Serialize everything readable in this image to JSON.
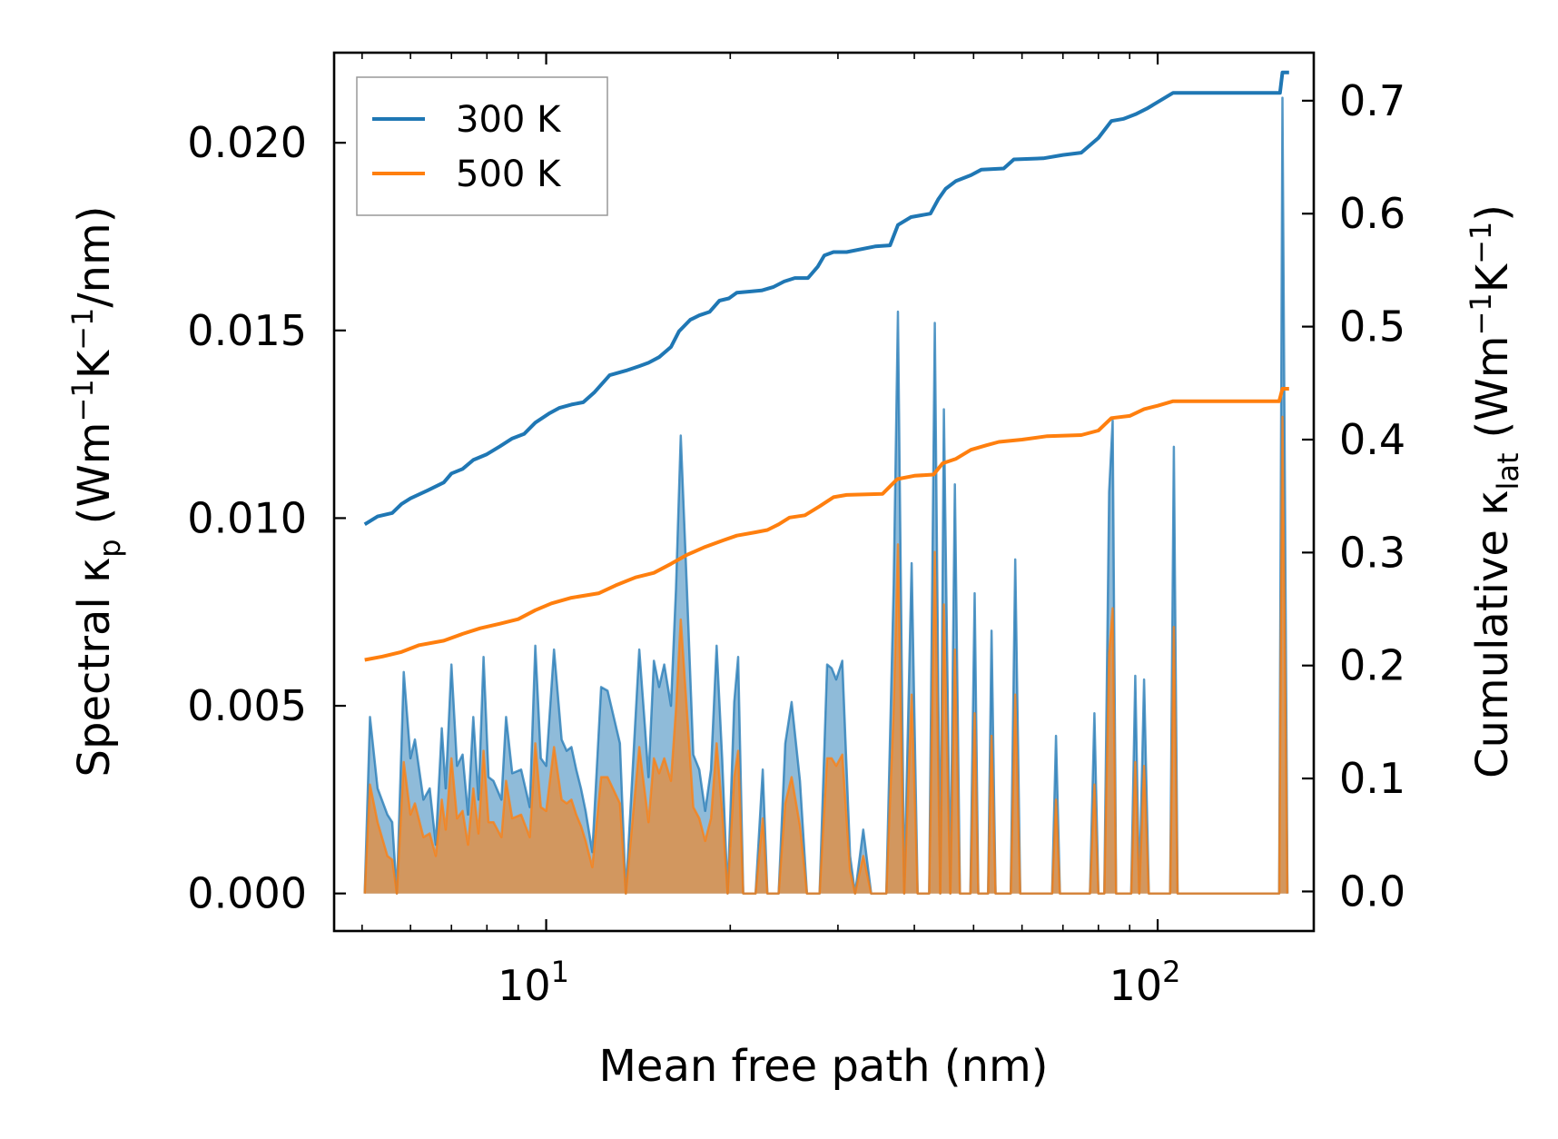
{
  "chart_data": {
    "type": "line",
    "xscale": "log",
    "xlabel": "Mean free path (nm)",
    "ylabel_left": {
      "main": "Spectral κ",
      "sub": "p",
      "unit": "(Wm",
      "sup1": "−1",
      "k": "K",
      "sup2": "−1",
      "tail": "/nm)"
    },
    "ylabel_right": {
      "main": "Cumulative κ",
      "sub": "lat",
      "unit": "(Wm",
      "sup1": "−1",
      "k": "K",
      "sup2": "−1",
      "tail": ")"
    },
    "xlim": [
      4.5,
      180
    ],
    "ylim_left": [
      -0.001,
      0.0224
    ],
    "ylim_right": [
      -0.035,
      0.7425
    ],
    "x_ticks": [
      {
        "value": 10,
        "base": "10",
        "exp": "1"
      },
      {
        "value": 100,
        "base": "10",
        "exp": "2"
      }
    ],
    "y_ticks_left": [
      {
        "value": 0.0,
        "label": "0.000"
      },
      {
        "value": 0.005,
        "label": "0.005"
      },
      {
        "value": 0.01,
        "label": "0.010"
      },
      {
        "value": 0.015,
        "label": "0.015"
      },
      {
        "value": 0.02,
        "label": "0.020"
      }
    ],
    "y_ticks_right": [
      {
        "value": 0.0,
        "label": "0.0"
      },
      {
        "value": 0.1,
        "label": "0.1"
      },
      {
        "value": 0.2,
        "label": "0.2"
      },
      {
        "value": 0.3,
        "label": "0.3"
      },
      {
        "value": 0.4,
        "label": "0.4"
      },
      {
        "value": 0.5,
        "label": "0.5"
      },
      {
        "value": 0.6,
        "label": "0.6"
      },
      {
        "value": 0.7,
        "label": "0.7"
      }
    ],
    "legend": {
      "position": "upper-left",
      "entries": [
        {
          "label": "300 K",
          "color": "#1f77b4"
        },
        {
          "label": "500 K",
          "color": "#ff7f0e"
        }
      ]
    },
    "spectral_300K": [
      [
        5.05,
        0
      ],
      [
        5.15,
        0.0047
      ],
      [
        5.3,
        0.0028
      ],
      [
        5.5,
        0.0021
      ],
      [
        5.6,
        0.0019
      ],
      [
        5.7,
        0
      ],
      [
        5.85,
        0.0059
      ],
      [
        6.0,
        0.0036
      ],
      [
        6.1,
        0.0041
      ],
      [
        6.3,
        0.0025
      ],
      [
        6.45,
        0.0028
      ],
      [
        6.6,
        0.0013
      ],
      [
        6.75,
        0.0044
      ],
      [
        6.85,
        0.0028
      ],
      [
        7.0,
        0.0061
      ],
      [
        7.15,
        0.0034
      ],
      [
        7.3,
        0.0037
      ],
      [
        7.45,
        0.0021
      ],
      [
        7.6,
        0.0047
      ],
      [
        7.75,
        0.0025
      ],
      [
        7.9,
        0.0063
      ],
      [
        8.05,
        0.0031
      ],
      [
        8.2,
        0.003
      ],
      [
        8.45,
        0.0025
      ],
      [
        8.6,
        0.0047
      ],
      [
        8.8,
        0.0032
      ],
      [
        9.1,
        0.0033
      ],
      [
        9.4,
        0.0023
      ],
      [
        9.6,
        0.0066
      ],
      [
        9.8,
        0.0036
      ],
      [
        10.0,
        0.0034
      ],
      [
        10.3,
        0.0065
      ],
      [
        10.6,
        0.0041
      ],
      [
        10.8,
        0.0038
      ],
      [
        11.0,
        0.0039
      ],
      [
        11.2,
        0.0033
      ],
      [
        11.4,
        0.0028
      ],
      [
        11.6,
        0.0022
      ],
      [
        11.9,
        0.0011
      ],
      [
        12.3,
        0.0055
      ],
      [
        12.6,
        0.0054
      ],
      [
        13.2,
        0.004
      ],
      [
        13.5,
        0
      ],
      [
        14.2,
        0.0065
      ],
      [
        14.5,
        0.0045
      ],
      [
        14.7,
        0.0031
      ],
      [
        15.0,
        0.0062
      ],
      [
        15.3,
        0.0055
      ],
      [
        15.6,
        0.0061
      ],
      [
        16.0,
        0.005
      ],
      [
        16.3,
        0.0081
      ],
      [
        16.6,
        0.0122
      ],
      [
        17.0,
        0.008
      ],
      [
        17.4,
        0.0037
      ],
      [
        17.8,
        0.0033
      ],
      [
        18.2,
        0.0022
      ],
      [
        18.6,
        0.0033
      ],
      [
        19.0,
        0.0066
      ],
      [
        19.4,
        0.0036
      ],
      [
        19.8,
        0
      ],
      [
        20.3,
        0.0051
      ],
      [
        20.6,
        0.0063
      ],
      [
        21.0,
        0
      ],
      [
        22.0,
        0
      ],
      [
        22.6,
        0.0033
      ],
      [
        23.0,
        0
      ],
      [
        24.0,
        0
      ],
      [
        24.6,
        0.004
      ],
      [
        25.2,
        0.0051
      ],
      [
        26.0,
        0.003
      ],
      [
        26.7,
        0
      ],
      [
        28.0,
        0
      ],
      [
        28.8,
        0.0061
      ],
      [
        29.3,
        0.006
      ],
      [
        29.8,
        0.0057
      ],
      [
        30.5,
        0.0062
      ],
      [
        31.4,
        0.001
      ],
      [
        32.0,
        0
      ],
      [
        33.0,
        0.0017
      ],
      [
        34.0,
        0
      ],
      [
        36.0,
        0
      ],
      [
        37.0,
        0.0082
      ],
      [
        37.6,
        0.0155
      ],
      [
        38.5,
        0
      ],
      [
        39.6,
        0.0088
      ],
      [
        40.5,
        0
      ],
      [
        42.3,
        0
      ],
      [
        43.2,
        0.0152
      ],
      [
        44.1,
        0
      ],
      [
        44.7,
        0.0129
      ],
      [
        45.8,
        0
      ],
      [
        46.6,
        0.0109
      ],
      [
        47.5,
        0
      ],
      [
        49.4,
        0
      ],
      [
        50.2,
        0.008
      ],
      [
        50.9,
        0
      ],
      [
        52.8,
        0
      ],
      [
        53.5,
        0.007
      ],
      [
        54.3,
        0
      ],
      [
        57.5,
        0
      ],
      [
        58.5,
        0.0089
      ],
      [
        59.6,
        0
      ],
      [
        67.2,
        0
      ],
      [
        68.2,
        0.0042
      ],
      [
        69.2,
        0
      ],
      [
        77.5,
        0
      ],
      [
        78.8,
        0.0048
      ],
      [
        80.0,
        0
      ],
      [
        81.8,
        0
      ],
      [
        83.3,
        0.0107
      ],
      [
        84.4,
        0.0126
      ],
      [
        85.5,
        0
      ],
      [
        90.5,
        0
      ],
      [
        91.9,
        0.0058
      ],
      [
        93.3,
        0
      ],
      [
        95.0,
        0.0057
      ],
      [
        96.7,
        0
      ],
      [
        104.8,
        0
      ],
      [
        106.3,
        0.0119
      ],
      [
        107.8,
        0
      ],
      [
        158.0,
        0
      ],
      [
        160.0,
        0.0212
      ],
      [
        163.0,
        0
      ]
    ],
    "spectral_500K": [
      [
        5.05,
        0
      ],
      [
        5.15,
        0.0029
      ],
      [
        5.3,
        0.0019
      ],
      [
        5.5,
        0.001
      ],
      [
        5.6,
        0.0009
      ],
      [
        5.7,
        0
      ],
      [
        5.85,
        0.0035
      ],
      [
        6.0,
        0.0021
      ],
      [
        6.1,
        0.0024
      ],
      [
        6.3,
        0.0015
      ],
      [
        6.45,
        0.0016
      ],
      [
        6.6,
        0.001
      ],
      [
        6.75,
        0.0025
      ],
      [
        6.85,
        0.0017
      ],
      [
        7.0,
        0.0036
      ],
      [
        7.15,
        0.002
      ],
      [
        7.3,
        0.0022
      ],
      [
        7.45,
        0.0013
      ],
      [
        7.6,
        0.0028
      ],
      [
        7.75,
        0.0016
      ],
      [
        7.9,
        0.0038
      ],
      [
        8.05,
        0.0019
      ],
      [
        8.2,
        0.0019
      ],
      [
        8.45,
        0.0015
      ],
      [
        8.6,
        0.003
      ],
      [
        8.8,
        0.002
      ],
      [
        9.1,
        0.0021
      ],
      [
        9.4,
        0.0015
      ],
      [
        9.6,
        0.004
      ],
      [
        9.8,
        0.0023
      ],
      [
        10.0,
        0.0022
      ],
      [
        10.3,
        0.0039
      ],
      [
        10.6,
        0.0025
      ],
      [
        10.8,
        0.0024
      ],
      [
        11.0,
        0.0025
      ],
      [
        11.2,
        0.0021
      ],
      [
        11.4,
        0.0018
      ],
      [
        11.6,
        0.0014
      ],
      [
        11.9,
        0.0007
      ],
      [
        12.3,
        0.0031
      ],
      [
        12.6,
        0.0031
      ],
      [
        13.2,
        0.0024
      ],
      [
        13.5,
        0
      ],
      [
        14.2,
        0.0039
      ],
      [
        14.5,
        0.0027
      ],
      [
        14.7,
        0.0019
      ],
      [
        15.0,
        0.0036
      ],
      [
        15.3,
        0.0032
      ],
      [
        15.6,
        0.0036
      ],
      [
        16.0,
        0.003
      ],
      [
        16.3,
        0.0049
      ],
      [
        16.6,
        0.0073
      ],
      [
        17.0,
        0.0048
      ],
      [
        17.4,
        0.0023
      ],
      [
        17.8,
        0.002
      ],
      [
        18.2,
        0.0014
      ],
      [
        18.6,
        0.002
      ],
      [
        19.0,
        0.004
      ],
      [
        19.4,
        0.0022
      ],
      [
        19.8,
        0
      ],
      [
        20.3,
        0.0031
      ],
      [
        20.6,
        0.0038
      ],
      [
        21.0,
        0
      ],
      [
        22.0,
        0
      ],
      [
        22.6,
        0.002
      ],
      [
        23.0,
        0
      ],
      [
        24.0,
        0
      ],
      [
        24.6,
        0.0024
      ],
      [
        25.2,
        0.0031
      ],
      [
        26.0,
        0.0018
      ],
      [
        26.7,
        0
      ],
      [
        28.0,
        0
      ],
      [
        28.8,
        0.0036
      ],
      [
        29.3,
        0.0036
      ],
      [
        29.8,
        0.0034
      ],
      [
        30.5,
        0.0037
      ],
      [
        31.4,
        0.0006
      ],
      [
        32.0,
        0
      ],
      [
        33.0,
        0.001
      ],
      [
        34.0,
        0
      ],
      [
        36.0,
        0
      ],
      [
        37.0,
        0.0049
      ],
      [
        37.6,
        0.0093
      ],
      [
        38.5,
        0
      ],
      [
        39.6,
        0.0053
      ],
      [
        40.5,
        0
      ],
      [
        42.3,
        0
      ],
      [
        43.2,
        0.0091
      ],
      [
        44.1,
        0
      ],
      [
        44.7,
        0.0077
      ],
      [
        45.8,
        0
      ],
      [
        46.6,
        0.0065
      ],
      [
        47.5,
        0
      ],
      [
        49.4,
        0
      ],
      [
        50.2,
        0.0048
      ],
      [
        50.9,
        0
      ],
      [
        52.8,
        0
      ],
      [
        53.5,
        0.0042
      ],
      [
        54.3,
        0
      ],
      [
        57.5,
        0
      ],
      [
        58.5,
        0.0053
      ],
      [
        59.6,
        0
      ],
      [
        67.2,
        0
      ],
      [
        68.2,
        0.0025
      ],
      [
        69.2,
        0
      ],
      [
        77.5,
        0
      ],
      [
        78.8,
        0.0029
      ],
      [
        80.0,
        0
      ],
      [
        81.8,
        0
      ],
      [
        83.3,
        0.0064
      ],
      [
        84.4,
        0.0076
      ],
      [
        85.5,
        0
      ],
      [
        90.5,
        0
      ],
      [
        91.9,
        0.0035
      ],
      [
        93.3,
        0
      ],
      [
        95.0,
        0.0034
      ],
      [
        96.7,
        0
      ],
      [
        104.8,
        0
      ],
      [
        106.3,
        0.0071
      ],
      [
        107.8,
        0
      ],
      [
        158.0,
        0
      ],
      [
        160.0,
        0.0127
      ],
      [
        163.0,
        0
      ]
    ],
    "cumulative_300K": [
      [
        5.05,
        0.325
      ],
      [
        5.3,
        0.332
      ],
      [
        5.6,
        0.335
      ],
      [
        5.8,
        0.343
      ],
      [
        6.0,
        0.348
      ],
      [
        6.4,
        0.355
      ],
      [
        6.8,
        0.362
      ],
      [
        7.0,
        0.37
      ],
      [
        7.3,
        0.374
      ],
      [
        7.6,
        0.382
      ],
      [
        8.0,
        0.387
      ],
      [
        8.4,
        0.394
      ],
      [
        8.8,
        0.401
      ],
      [
        9.2,
        0.405
      ],
      [
        9.6,
        0.415
      ],
      [
        10.1,
        0.423
      ],
      [
        10.5,
        0.428
      ],
      [
        11.0,
        0.431
      ],
      [
        11.5,
        0.433
      ],
      [
        12.0,
        0.442
      ],
      [
        12.7,
        0.457
      ],
      [
        13.5,
        0.461
      ],
      [
        14.2,
        0.465
      ],
      [
        14.7,
        0.468
      ],
      [
        15.3,
        0.473
      ],
      [
        16.0,
        0.482
      ],
      [
        16.5,
        0.496
      ],
      [
        17.2,
        0.506
      ],
      [
        17.8,
        0.51
      ],
      [
        18.5,
        0.513
      ],
      [
        19.2,
        0.523
      ],
      [
        19.9,
        0.525
      ],
      [
        20.5,
        0.53
      ],
      [
        21.5,
        0.531
      ],
      [
        22.5,
        0.532
      ],
      [
        23.5,
        0.535
      ],
      [
        24.5,
        0.54
      ],
      [
        25.5,
        0.543
      ],
      [
        26.8,
        0.543
      ],
      [
        27.8,
        0.553
      ],
      [
        28.5,
        0.563
      ],
      [
        29.5,
        0.566
      ],
      [
        31.0,
        0.566
      ],
      [
        34.5,
        0.571
      ],
      [
        36.5,
        0.572
      ],
      [
        37.6,
        0.59
      ],
      [
        39.5,
        0.597
      ],
      [
        42.5,
        0.6
      ],
      [
        43.8,
        0.613
      ],
      [
        45.0,
        0.622
      ],
      [
        46.8,
        0.629
      ],
      [
        49.5,
        0.634
      ],
      [
        51.5,
        0.639
      ],
      [
        56.0,
        0.64
      ],
      [
        58.2,
        0.648
      ],
      [
        65.0,
        0.649
      ],
      [
        70.0,
        0.652
      ],
      [
        75.0,
        0.654
      ],
      [
        80.0,
        0.667
      ],
      [
        84.0,
        0.682
      ],
      [
        88.0,
        0.684
      ],
      [
        92.0,
        0.688
      ],
      [
        96.0,
        0.693
      ],
      [
        106.0,
        0.707
      ],
      [
        110.0,
        0.707
      ],
      [
        158.5,
        0.707
      ],
      [
        160.0,
        0.725
      ],
      [
        164.0,
        0.725
      ]
    ],
    "cumulative_500K": [
      [
        5.05,
        0.205
      ],
      [
        5.4,
        0.208
      ],
      [
        5.8,
        0.212
      ],
      [
        6.2,
        0.218
      ],
      [
        6.8,
        0.222
      ],
      [
        7.3,
        0.228
      ],
      [
        7.8,
        0.233
      ],
      [
        8.4,
        0.237
      ],
      [
        9.0,
        0.241
      ],
      [
        9.6,
        0.249
      ],
      [
        10.2,
        0.255
      ],
      [
        11.0,
        0.26
      ],
      [
        12.2,
        0.264
      ],
      [
        13.0,
        0.271
      ],
      [
        14.0,
        0.278
      ],
      [
        15.0,
        0.282
      ],
      [
        16.0,
        0.29
      ],
      [
        17.0,
        0.298
      ],
      [
        18.2,
        0.305
      ],
      [
        19.5,
        0.311
      ],
      [
        20.5,
        0.315
      ],
      [
        22.0,
        0.318
      ],
      [
        23.0,
        0.32
      ],
      [
        24.0,
        0.325
      ],
      [
        25.0,
        0.331
      ],
      [
        26.5,
        0.333
      ],
      [
        28.0,
        0.341
      ],
      [
        29.5,
        0.349
      ],
      [
        31.0,
        0.351
      ],
      [
        35.5,
        0.352
      ],
      [
        37.5,
        0.365
      ],
      [
        40.0,
        0.368
      ],
      [
        43.0,
        0.369
      ],
      [
        44.5,
        0.379
      ],
      [
        46.8,
        0.383
      ],
      [
        49.5,
        0.391
      ],
      [
        52.5,
        0.395
      ],
      [
        55.0,
        0.398
      ],
      [
        60.0,
        0.4
      ],
      [
        66.0,
        0.403
      ],
      [
        75.0,
        0.404
      ],
      [
        80.0,
        0.408
      ],
      [
        84.0,
        0.419
      ],
      [
        90.0,
        0.421
      ],
      [
        95.0,
        0.427
      ],
      [
        100.0,
        0.43
      ],
      [
        106.0,
        0.434
      ],
      [
        120.0,
        0.434
      ],
      [
        158.0,
        0.434
      ],
      [
        160.0,
        0.445
      ],
      [
        164.0,
        0.445
      ]
    ]
  }
}
